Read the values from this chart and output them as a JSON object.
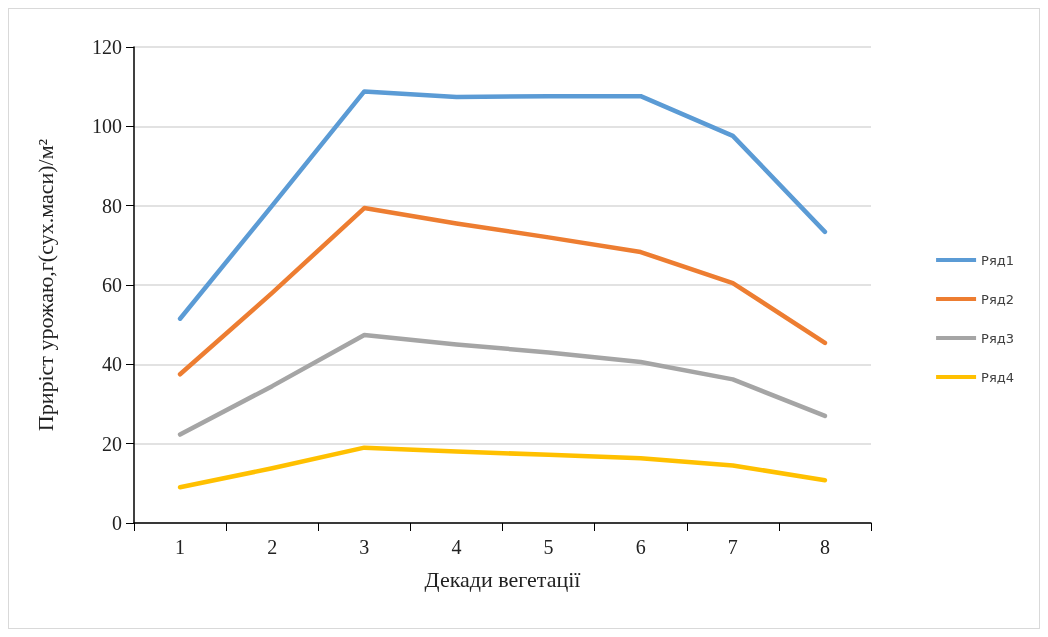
{
  "chart_data": {
    "type": "line",
    "xlabel": "Декади вегетації",
    "ylabel": "Приріст урожаю,г(сух.маси)/м²",
    "categories": [
      "1",
      "2",
      "3",
      "4",
      "5",
      "6",
      "7",
      "8"
    ],
    "ylim": [
      0,
      120
    ],
    "yticks": [
      0,
      20,
      40,
      60,
      80,
      100,
      120
    ],
    "grid": "y",
    "legend": "right",
    "marker": "none",
    "line_style": "solid",
    "series": [
      {
        "name": "Ряд1",
        "color": "#5b9bd5",
        "values": [
          51.5,
          80,
          108.8,
          107.4,
          107.6,
          107.6,
          97.6,
          73.4
        ]
      },
      {
        "name": "Ряд2",
        "color": "#ed7d31",
        "values": [
          37.5,
          58,
          79.4,
          75.5,
          72,
          68.3,
          60.5,
          45.4
        ]
      },
      {
        "name": "Ряд3",
        "color": "#a5a5a5",
        "values": [
          22.3,
          34.5,
          47.4,
          45,
          43,
          40.6,
          36.2,
          27
        ]
      },
      {
        "name": "Ряд4",
        "color": "#ffc000",
        "values": [
          9,
          13.8,
          19,
          18,
          17.2,
          16.3,
          14.5,
          10.8
        ]
      }
    ]
  }
}
